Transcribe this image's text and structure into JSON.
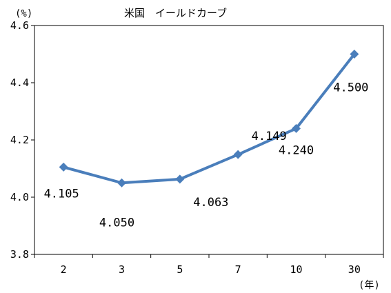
{
  "chart_data": {
    "type": "line",
    "title": "米国　イールドカーブ",
    "y_unit": "(%)",
    "x_unit": "(年)",
    "categories": [
      "2",
      "3",
      "5",
      "7",
      "10",
      "30"
    ],
    "series": [
      {
        "values": [
          4.105,
          4.05,
          4.063,
          4.149,
          4.24,
          4.5
        ]
      }
    ],
    "data_labels": [
      "4.105",
      "4.050",
      "4.063",
      "4.149",
      "4.240",
      "4.500"
    ],
    "ylim": [
      3.8,
      4.6
    ],
    "yticks": [
      "3.8",
      "4.0",
      "4.2",
      "4.4",
      "4.6"
    ],
    "grid": false,
    "legend": "none",
    "colors": {
      "series": "#4a7ebb",
      "axis": "#000000"
    }
  }
}
